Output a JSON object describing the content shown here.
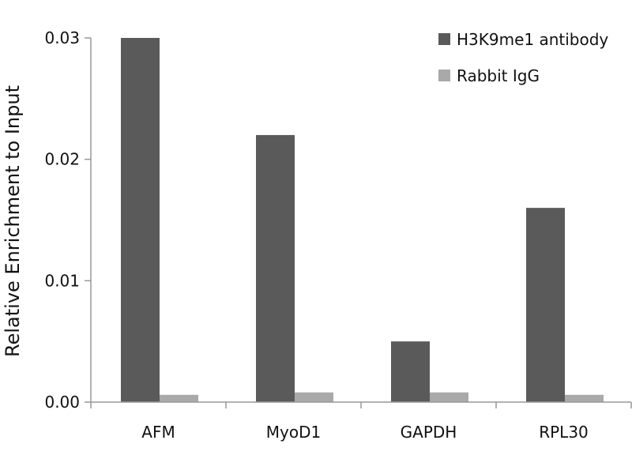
{
  "chart_data": {
    "type": "bar",
    "title": "",
    "xlabel": "",
    "ylabel": "Relative Enrichment to Input",
    "ylim": [
      0,
      0.03
    ],
    "yticks": [
      "0.00",
      "0.01",
      "0.02",
      "0.03"
    ],
    "grid": false,
    "legend_position": "top-right",
    "categories": [
      "AFM",
      "MyoD1",
      "GAPDH",
      "RPL30"
    ],
    "series": [
      {
        "name": "H3K9me1 antibody",
        "color": "#5a5a5a",
        "values": [
          0.03,
          0.022,
          0.005,
          0.016
        ]
      },
      {
        "name": "Rabbit IgG",
        "color": "#a9a9a9",
        "values": [
          0.0006,
          0.0008,
          0.0008,
          0.0006
        ]
      }
    ]
  }
}
